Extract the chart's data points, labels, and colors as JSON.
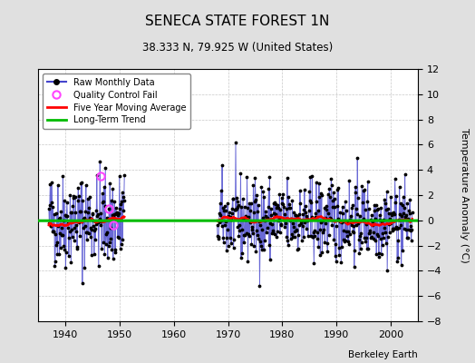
{
  "title": "SENECA STATE FOREST 1N",
  "subtitle": "38.333 N, 79.925 W (United States)",
  "ylabel": "Temperature Anomaly (°C)",
  "credit": "Berkeley Earth",
  "xlim": [
    1935,
    2005
  ],
  "ylim": [
    -8,
    12
  ],
  "yticks": [
    -8,
    -6,
    -4,
    -2,
    0,
    2,
    4,
    6,
    8,
    10,
    12
  ],
  "xticks": [
    1940,
    1950,
    1960,
    1970,
    1980,
    1990,
    2000
  ],
  "bg_color": "#e0e0e0",
  "plot_bg_color": "#ffffff",
  "raw_color": "#4444cc",
  "ma_color": "#ff0000",
  "trend_color": "#00bb00",
  "qc_color": "#ff44ff",
  "seed": 42,
  "seg1_start": 1937,
  "seg1_end": 1950,
  "seg2_start": 1968,
  "seg2_end": 2003,
  "qc_times": [
    1946.5,
    1948.0,
    1948.9
  ],
  "qc_vals": [
    3.5,
    0.9,
    -0.4
  ]
}
